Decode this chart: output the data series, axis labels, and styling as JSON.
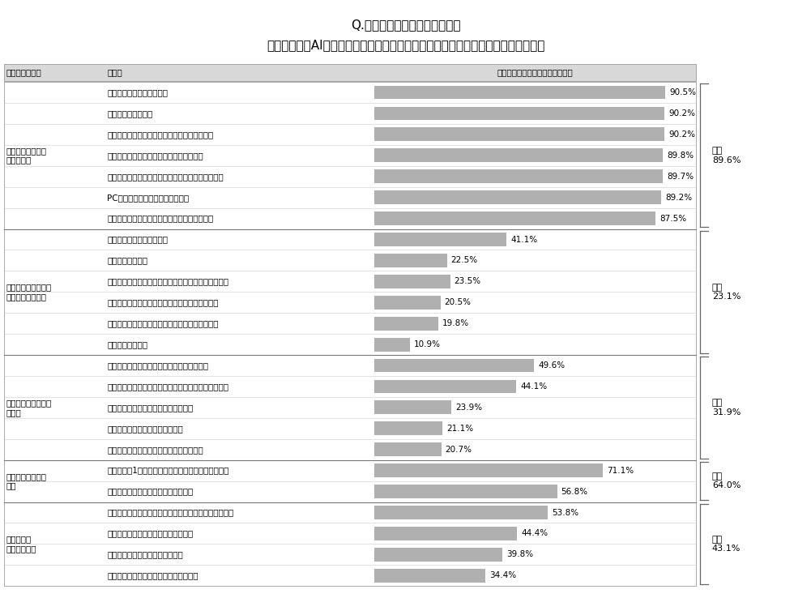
{
  "title_line1": "Q.あなたの現在の仕事のうち、",
  "title_line2": "　システム、AI、ロボット等の自動化手段に代替されると感じる業務はなんですか",
  "col_header_group": "業務のグループ",
  "col_header_task": "業務例",
  "col_header_rate": "「代替されると思う」回答者比率",
  "bar_color": "#b0b0b0",
  "groups": [
    {
      "name": "手順やルールが決\nまった業務",
      "average": "平均\n89.6%",
      "items": [
        {
          "label": "マニュアルに従い行う業務",
          "value": 90.5
        },
        {
          "label": "数値を集計する業務",
          "value": 90.2
        },
        {
          "label": "決められた手順に従い、申請書を作成する業務",
          "value": 90.2
        },
        {
          "label": "日々、ルーティンとして繰り返される業務",
          "value": 89.8
        },
        {
          "label": "決められた手順に従い、ミスをせずにやりきる業務",
          "value": 89.7
        },
        {
          "label": "PCに向かって情報を入力する業務",
          "value": 89.2
        },
        {
          "label": "指示されたことを指示されたとおりに行う業務",
          "value": 87.5
        }
      ]
    },
    {
      "name": "コミュニケーション\nを必要とする業務",
      "average": "平均\n23.1%",
      "items": [
        {
          "label": "他者にアドバイスする業務",
          "value": 41.1
        },
        {
          "label": "マネジメント業務",
          "value": 22.5
        },
        {
          "label": "チームのメンバーと話し作戦や行動計画を決める業務",
          "value": 23.5
        },
        {
          "label": "相手の意図を汲み取り、臨機応変に対応する業務",
          "value": 20.5
        },
        {
          "label": "他社とコミュケーションを取りながら進める業務",
          "value": 19.8
        },
        {
          "label": "部下や後輩の育成",
          "value": 10.9
        }
      ]
    },
    {
      "name": "創意工夫が求められ\nる業務",
      "average": "平均\n31.9%",
      "items": [
        {
          "label": "複数のものを組み合わせてアレンジする業務",
          "value": 49.6
        },
        {
          "label": "事業やサービスを実現するための骨子をまとめる業務",
          "value": 44.1
        },
        {
          "label": "新たな事業やサービスを企画する業務",
          "value": 23.9
        },
        {
          "label": "前例のない課題に答えを出す業務",
          "value": 21.1
        },
        {
          "label": "新しいアイデアや工夫する点を考える業務",
          "value": 20.7
        }
      ]
    },
    {
      "name": "タスクを管理する\n業務",
      "average": "平均\n64.0%",
      "items": [
        {
          "label": "手帳などに1日の作業の計画を書き込み整理する業務",
          "value": 71.1
        },
        {
          "label": "自分自身の目標と予定を管理する業務",
          "value": 56.8
        }
      ]
    },
    {
      "name": "課題解決や\nプロジェクト",
      "average": "平均\n43.1%",
      "items": [
        {
          "label": "前例や過去の事例を参照し、課題解決の糸口を探す業務",
          "value": 53.8
        },
        {
          "label": "問題点を発見し、課題を特定する業務",
          "value": 44.4
        },
        {
          "label": "期間限定の、繰り返しのない業務",
          "value": 39.8
        },
        {
          "label": "目標を達成したら解散するプロジェクト",
          "value": 34.4
        }
      ]
    }
  ],
  "max_value": 100,
  "background_color": "#ffffff",
  "header_bg": "#d8d8d8"
}
